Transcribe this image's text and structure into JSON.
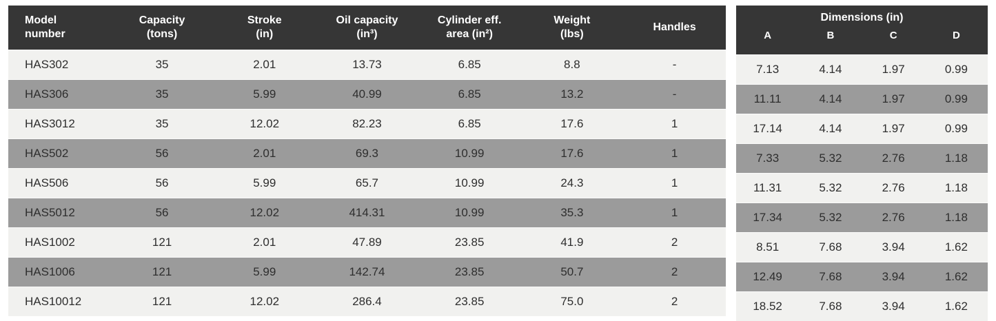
{
  "colors": {
    "header_bg": "#363636",
    "header_text": "#ffffff",
    "row_light": "#f1f1ef",
    "row_gray": "#9b9b9b",
    "cell_text": "#2e2e2e",
    "page_bg": "#ffffff"
  },
  "chart_data": [
    {
      "type": "table",
      "name": "cylinder-spec-table",
      "columns": [
        "Model\nnumber",
        "Capacity\n(tons)",
        "Stroke\n(in)",
        "Oil capacity\n(in³)",
        "Cylinder eff.\narea (in²)",
        "Weight\n(lbs)",
        "Handles"
      ],
      "rows": [
        [
          "HAS302",
          "35",
          "2.01",
          "13.73",
          "6.85",
          "8.8",
          "-"
        ],
        [
          "HAS306",
          "35",
          "5.99",
          "40.99",
          "6.85",
          "13.2",
          "-"
        ],
        [
          "HAS3012",
          "35",
          "12.02",
          "82.23",
          "6.85",
          "17.6",
          "1"
        ],
        [
          "HAS502",
          "56",
          "2.01",
          "69.3",
          "10.99",
          "17.6",
          "1"
        ],
        [
          "HAS506",
          "56",
          "5.99",
          "65.7",
          "10.99",
          "24.3",
          "1"
        ],
        [
          "HAS5012",
          "56",
          "12.02",
          "414.31",
          "10.99",
          "35.3",
          "1"
        ],
        [
          "HAS1002",
          "121",
          "2.01",
          "47.89",
          "23.85",
          "41.9",
          "2"
        ],
        [
          "HAS1006",
          "121",
          "5.99",
          "142.74",
          "23.85",
          "50.7",
          "2"
        ],
        [
          "HAS10012",
          "121",
          "12.02",
          "286.4",
          "23.85",
          "75.0",
          "2"
        ]
      ]
    },
    {
      "type": "table",
      "name": "dimensions-table",
      "title": "Dimensions (in)",
      "columns": [
        "A",
        "B",
        "C",
        "D"
      ],
      "rows": [
        [
          "7.13",
          "4.14",
          "1.97",
          "0.99"
        ],
        [
          "11.11",
          "4.14",
          "1.97",
          "0.99"
        ],
        [
          "17.14",
          "4.14",
          "1.97",
          "0.99"
        ],
        [
          "7.33",
          "5.32",
          "2.76",
          "1.18"
        ],
        [
          "11.31",
          "5.32",
          "2.76",
          "1.18"
        ],
        [
          "17.34",
          "5.32",
          "2.76",
          "1.18"
        ],
        [
          "8.51",
          "7.68",
          "3.94",
          "1.62"
        ],
        [
          "12.49",
          "7.68",
          "3.94",
          "1.62"
        ],
        [
          "18.52",
          "7.68",
          "3.94",
          "1.62"
        ]
      ]
    }
  ]
}
